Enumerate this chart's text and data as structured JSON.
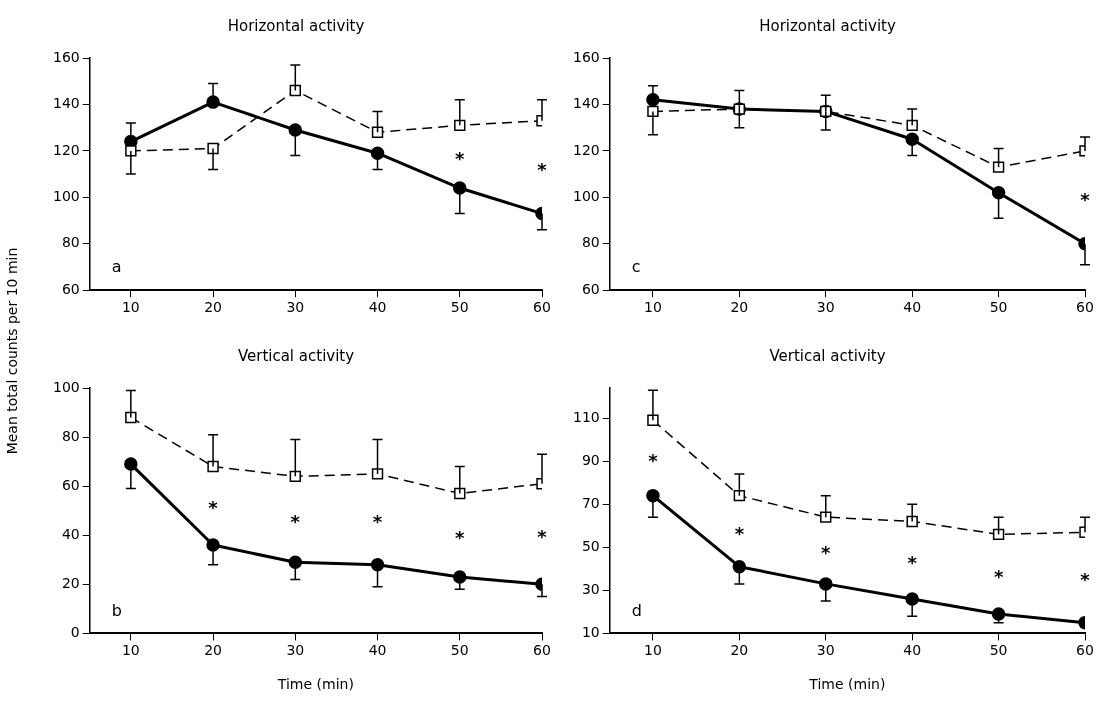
{
  "chart_data": [
    {
      "type": "line",
      "title": "Horizontal activity",
      "ylabel": "Mean total counts per 10 min",
      "x": [
        10,
        20,
        30,
        40,
        50,
        60
      ],
      "xlim": [
        5,
        60
      ],
      "xticks": [
        10,
        20,
        30,
        40,
        50,
        60
      ],
      "ylim": [
        60,
        160
      ],
      "yticks": [
        60,
        80,
        100,
        120,
        140,
        160
      ],
      "series": [
        {
          "color": "#000000",
          "marker": "circle",
          "line_style": "solid",
          "values": [
            124,
            141,
            129,
            119,
            104,
            93
          ],
          "errors": [
            [
              124,
              132
            ],
            [
              141,
              149
            ],
            [
              118,
              129
            ],
            [
              112,
              119
            ],
            [
              93,
              104
            ],
            [
              86,
              93
            ]
          ]
        },
        {
          "color": "#000000",
          "marker": "square",
          "line_style": "dashed",
          "values": [
            120,
            121,
            146,
            128,
            131,
            133
          ],
          "errors": [
            [
              110,
              120
            ],
            [
              112,
              121
            ],
            [
              146,
              157
            ],
            [
              128,
              137
            ],
            [
              131,
              142
            ],
            [
              133,
              142
            ]
          ]
        }
      ],
      "annotations": [
        "a",
        "*",
        "*"
      ]
    },
    {
      "type": "line",
      "title": "Horizontal activity",
      "x": [
        10,
        20,
        30,
        40,
        50,
        60
      ],
      "xlim": [
        5,
        60
      ],
      "xticks": [
        10,
        20,
        30,
        40,
        50,
        60
      ],
      "ylim": [
        60,
        160
      ],
      "yticks": [
        60,
        80,
        100,
        120,
        140,
        160
      ],
      "series": [
        {
          "color": "#000000",
          "marker": "circle",
          "line_style": "solid",
          "values": [
            142,
            138,
            137,
            125,
            102,
            80
          ],
          "errors": [
            [
              142,
              148
            ],
            [
              138,
              146
            ],
            [
              137,
              144
            ],
            [
              118,
              125
            ],
            [
              91,
              102
            ],
            [
              71,
              80
            ]
          ]
        },
        {
          "color": "#000000",
          "marker": "square",
          "line_style": "dashed",
          "values": [
            137,
            138,
            137,
            131,
            113,
            120
          ],
          "errors": [
            [
              127,
              137
            ],
            [
              130,
              138
            ],
            [
              129,
              137
            ],
            [
              131,
              138
            ],
            [
              113,
              121
            ],
            [
              120,
              126
            ]
          ]
        }
      ],
      "annotations": [
        "c",
        "*"
      ]
    },
    {
      "type": "line",
      "title": "Vertical activity",
      "xlabel": "Time (min)",
      "x": [
        10,
        20,
        30,
        40,
        50,
        60
      ],
      "xlim": [
        5,
        60
      ],
      "xticks": [
        10,
        20,
        30,
        40,
        50,
        60
      ],
      "ylim": [
        0,
        100
      ],
      "yticks": [
        0,
        20,
        40,
        60,
        80,
        100
      ],
      "series": [
        {
          "color": "#000000",
          "marker": "circle",
          "line_style": "solid",
          "values": [
            69,
            36,
            29,
            28,
            23,
            20
          ],
          "errors": [
            [
              59,
              69
            ],
            [
              28,
              36
            ],
            [
              22,
              29
            ],
            [
              19,
              28
            ],
            [
              18,
              23
            ],
            [
              15,
              20
            ]
          ]
        },
        {
          "color": "#000000",
          "marker": "square",
          "line_style": "dashed",
          "values": [
            88,
            68,
            64,
            65,
            57,
            61
          ],
          "errors": [
            [
              88,
              99
            ],
            [
              68,
              81
            ],
            [
              64,
              79
            ],
            [
              65,
              79
            ],
            [
              57,
              68
            ],
            [
              61,
              73
            ]
          ]
        }
      ],
      "annotations": [
        "b",
        "*",
        "*",
        "*",
        "*",
        "*"
      ]
    },
    {
      "type": "line",
      "title": "Vertical activity",
      "xlabel": "Time (min)",
      "x": [
        10,
        20,
        30,
        40,
        50,
        60
      ],
      "xlim": [
        5,
        60
      ],
      "xticks": [
        10,
        20,
        30,
        40,
        50,
        60
      ],
      "ylim": [
        10,
        124
      ],
      "yticks": [
        10,
        30,
        50,
        70,
        90,
        110
      ],
      "series": [
        {
          "color": "#000000",
          "marker": "circle",
          "line_style": "solid",
          "values": [
            74,
            41,
            33,
            26,
            19,
            15
          ],
          "errors": [
            [
              64,
              74
            ],
            [
              33,
              41
            ],
            [
              25,
              33
            ],
            [
              18,
              26
            ],
            [
              15,
              19
            ],
            null
          ]
        },
        {
          "color": "#000000",
          "marker": "square",
          "line_style": "dashed",
          "values": [
            109,
            74,
            64,
            62,
            56,
            57
          ],
          "errors": [
            [
              109,
              123
            ],
            [
              74,
              84
            ],
            [
              64,
              74
            ],
            [
              62,
              70
            ],
            [
              56,
              64
            ],
            [
              57,
              64
            ]
          ]
        }
      ],
      "annotations": [
        "d",
        "*",
        "*",
        "*",
        "*",
        "*",
        "*"
      ]
    }
  ]
}
